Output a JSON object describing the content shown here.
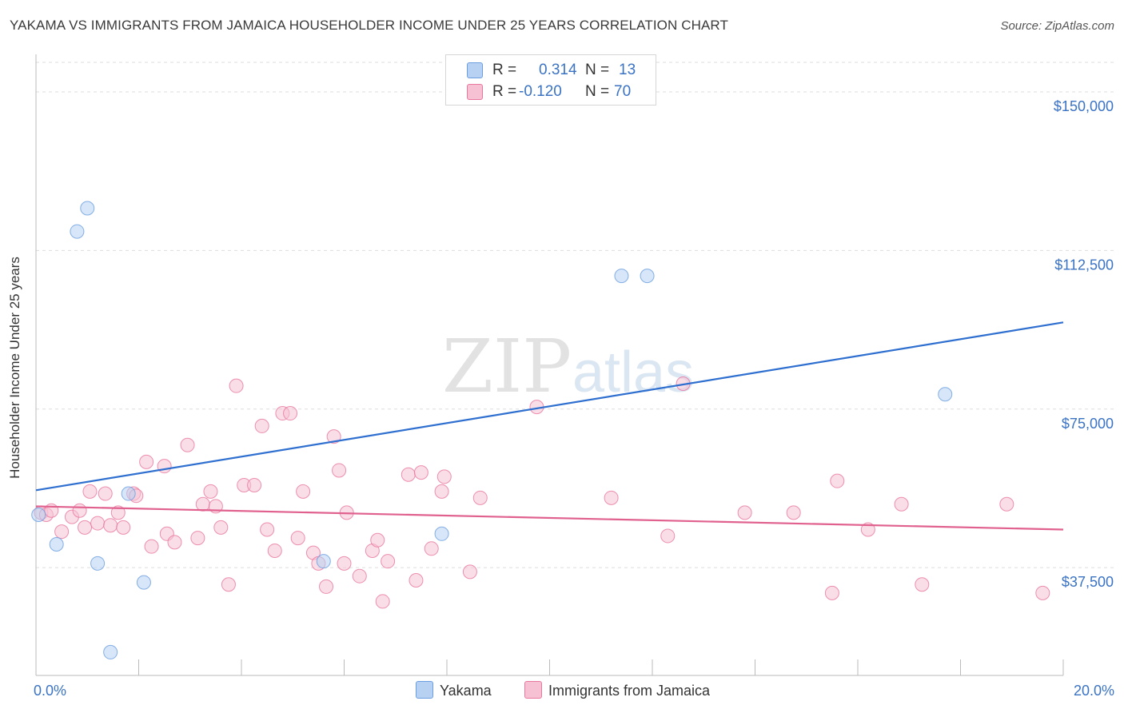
{
  "title": "YAKAMA VS IMMIGRANTS FROM JAMAICA HOUSEHOLDER INCOME UNDER 25 YEARS CORRELATION CHART",
  "source": "Source: ZipAtlas.com",
  "watermark": {
    "zip": "ZIP",
    "atlas": "atlas"
  },
  "colors": {
    "yakama": "#6a9ee0",
    "yakama_fill": "#b7d1f2",
    "jamaica": "#e8769e",
    "jamaica_fill": "#f6c2d3",
    "axis_label": "#3b73c4",
    "grid": "#dddddd"
  },
  "legend": {
    "yakama": {
      "r_label": "R = ",
      "r_value": "0.314",
      "n_label": "N = ",
      "n_value": "13"
    },
    "jamaica": {
      "r_label": "R = ",
      "r_value": "-0.120",
      "n_label": "N = ",
      "n_value": "70"
    }
  },
  "bottom_legend": {
    "yakama": "Yakama",
    "jamaica": "Immigrants from Jamaica"
  },
  "chart_data": {
    "type": "scatter",
    "ylabel": "Householder Income Under 25 years",
    "xlim": [
      0,
      20
    ],
    "ylim": [
      12000,
      157000
    ],
    "y_ticks": [
      {
        "value": 37500,
        "label": "$37,500"
      },
      {
        "value": 75000,
        "label": "$75,000"
      },
      {
        "value": 112500,
        "label": "$112,500"
      },
      {
        "value": 150000,
        "label": "$150,000"
      }
    ],
    "x_ticks": [
      {
        "value": 0,
        "label": "0.0%"
      },
      {
        "value": 20,
        "label": "20.0%"
      }
    ],
    "x_minor_ticks": [
      0,
      2,
      4,
      6,
      8,
      10,
      12,
      14,
      16,
      18,
      20
    ],
    "series": [
      {
        "name": "Yakama",
        "color": "#6a9ee0",
        "fill": "#b7d1f2",
        "points": [
          [
            0.05,
            50000
          ],
          [
            0.4,
            43000
          ],
          [
            0.8,
            117000
          ],
          [
            1.0,
            122500
          ],
          [
            1.2,
            38500
          ],
          [
            1.45,
            17500
          ],
          [
            1.8,
            55000
          ],
          [
            2.1,
            34000
          ],
          [
            5.6,
            39000
          ],
          [
            7.9,
            45500
          ],
          [
            11.4,
            106500
          ],
          [
            11.9,
            106500
          ],
          [
            17.7,
            78500
          ]
        ],
        "trend": {
          "x": [
            0,
            20
          ],
          "y": [
            55800,
            95500
          ]
        }
      },
      {
        "name": "Immigrants from Jamaica",
        "color": "#e8769e",
        "fill": "#f6c2d3",
        "points": [
          [
            0.1,
            50500
          ],
          [
            0.2,
            50000
          ],
          [
            0.3,
            51000
          ],
          [
            0.5,
            46000
          ],
          [
            0.7,
            49500
          ],
          [
            0.85,
            51000
          ],
          [
            0.95,
            47000
          ],
          [
            1.05,
            55500
          ],
          [
            1.2,
            48000
          ],
          [
            1.35,
            55000
          ],
          [
            1.45,
            47500
          ],
          [
            1.6,
            50500
          ],
          [
            1.7,
            47000
          ],
          [
            1.9,
            55000
          ],
          [
            1.95,
            54500
          ],
          [
            2.15,
            62500
          ],
          [
            2.25,
            42500
          ],
          [
            2.5,
            61500
          ],
          [
            2.55,
            45500
          ],
          [
            2.7,
            43500
          ],
          [
            2.95,
            66500
          ],
          [
            3.15,
            44500
          ],
          [
            3.25,
            52500
          ],
          [
            3.4,
            55500
          ],
          [
            3.5,
            52000
          ],
          [
            3.6,
            47000
          ],
          [
            3.75,
            33500
          ],
          [
            3.9,
            80500
          ],
          [
            4.05,
            57000
          ],
          [
            4.25,
            57000
          ],
          [
            4.4,
            71000
          ],
          [
            4.5,
            46500
          ],
          [
            4.65,
            41500
          ],
          [
            4.8,
            74000
          ],
          [
            4.95,
            74000
          ],
          [
            5.1,
            44500
          ],
          [
            5.2,
            55500
          ],
          [
            5.4,
            41000
          ],
          [
            5.5,
            38500
          ],
          [
            5.65,
            33000
          ],
          [
            5.8,
            68500
          ],
          [
            5.9,
            60500
          ],
          [
            6.0,
            38500
          ],
          [
            6.05,
            50500
          ],
          [
            6.3,
            35500
          ],
          [
            6.55,
            41500
          ],
          [
            6.65,
            44000
          ],
          [
            6.75,
            29500
          ],
          [
            6.85,
            39000
          ],
          [
            7.25,
            59500
          ],
          [
            7.4,
            34500
          ],
          [
            7.5,
            60000
          ],
          [
            7.7,
            42000
          ],
          [
            7.9,
            55500
          ],
          [
            7.95,
            59000
          ],
          [
            8.45,
            36500
          ],
          [
            8.65,
            54000
          ],
          [
            9.75,
            75500
          ],
          [
            11.2,
            54000
          ],
          [
            12.3,
            45000
          ],
          [
            12.6,
            81000
          ],
          [
            13.8,
            50500
          ],
          [
            14.75,
            50500
          ],
          [
            15.5,
            31500
          ],
          [
            15.6,
            58000
          ],
          [
            16.2,
            46500
          ],
          [
            16.85,
            52500
          ],
          [
            17.25,
            33500
          ],
          [
            18.9,
            52500
          ],
          [
            19.6,
            31500
          ]
        ],
        "trend": {
          "x": [
            0,
            20
          ],
          "y": [
            52000,
            46500
          ]
        }
      }
    ]
  }
}
